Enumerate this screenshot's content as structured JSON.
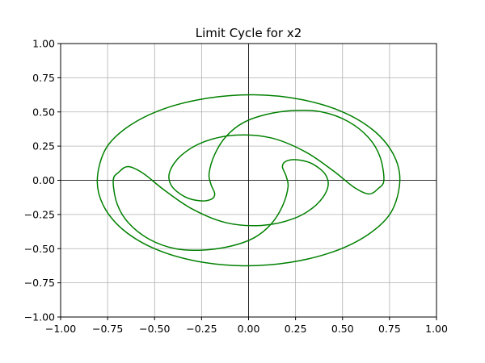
{
  "chart_data": {
    "type": "line",
    "title": "Limit Cycle for x2",
    "xlabel": "",
    "ylabel": "",
    "xlim": [
      -1.0,
      1.0
    ],
    "ylim": [
      -1.0,
      1.0
    ],
    "xticks": [
      -1.0,
      -0.75,
      -0.5,
      -0.25,
      0.0,
      0.25,
      0.5,
      0.75,
      1.0
    ],
    "yticks": [
      -1.0,
      -0.75,
      -0.5,
      -0.25,
      0.0,
      0.25,
      0.5,
      0.75,
      1.0
    ],
    "xtick_labels": [
      "−1.00",
      "−0.75",
      "−0.50",
      "−0.25",
      "0.00",
      "0.25",
      "0.50",
      "0.75",
      "1.00"
    ],
    "ytick_labels": [
      "−1.00",
      "−0.75",
      "−0.50",
      "−0.25",
      "0.00",
      "0.25",
      "0.50",
      "0.75",
      "1.00"
    ],
    "grid": true,
    "zero_axes_lines": true,
    "series": [
      {
        "color": "#008000",
        "x": [
          0.805,
          0.769,
          0.662,
          0.492,
          0.275,
          0.03,
          -0.221,
          -0.452,
          -0.638,
          -0.76,
          -0.805,
          -0.769,
          -0.662,
          -0.492,
          -0.275,
          -0.03,
          0.221,
          0.452,
          0.638,
          0.76,
          0.805
        ],
        "y": [
          0.0,
          0.194,
          0.368,
          0.505,
          0.592,
          0.625,
          0.6,
          0.522,
          0.395,
          0.23,
          0.0,
          -0.194,
          -0.368,
          -0.505,
          -0.592,
          -0.625,
          -0.6,
          -0.522,
          -0.395,
          -0.23,
          0.0
        ]
      },
      {
        "color": "#008000",
        "x": [
          0.72,
          0.7,
          0.64,
          0.53,
          0.39,
          0.24,
          0.09,
          -0.03,
          -0.12,
          -0.18,
          -0.21,
          -0.2,
          -0.18,
          -0.2,
          -0.26,
          -0.34,
          -0.41,
          -0.42,
          -0.36,
          -0.24,
          -0.07,
          0.12,
          0.3,
          0.45,
          0.56,
          0.64,
          0.69,
          0.72
        ],
        "y": [
          0.0,
          0.17,
          0.31,
          0.43,
          0.5,
          0.51,
          0.48,
          0.42,
          0.32,
          0.19,
          0.05,
          -0.03,
          -0.1,
          -0.14,
          -0.15,
          -0.12,
          -0.04,
          0.06,
          0.18,
          0.28,
          0.33,
          0.31,
          0.21,
          0.07,
          -0.05,
          -0.1,
          -0.06,
          0.0
        ]
      },
      {
        "color": "#008000",
        "x": [
          -0.72,
          -0.7,
          -0.64,
          -0.53,
          -0.39,
          -0.24,
          -0.09,
          0.03,
          0.12,
          0.18,
          0.21,
          0.2,
          0.18,
          0.2,
          0.26,
          0.34,
          0.41,
          0.42,
          0.36,
          0.24,
          0.07,
          -0.12,
          -0.3,
          -0.45,
          -0.56,
          -0.64,
          -0.69,
          -0.72
        ],
        "y": [
          0.0,
          -0.17,
          -0.31,
          -0.43,
          -0.5,
          -0.51,
          -0.48,
          -0.42,
          -0.32,
          -0.19,
          -0.05,
          0.03,
          0.1,
          0.14,
          0.15,
          0.12,
          0.04,
          -0.06,
          -0.18,
          -0.28,
          -0.33,
          -0.31,
          -0.21,
          -0.07,
          0.05,
          0.1,
          0.06,
          0.0
        ]
      }
    ]
  }
}
